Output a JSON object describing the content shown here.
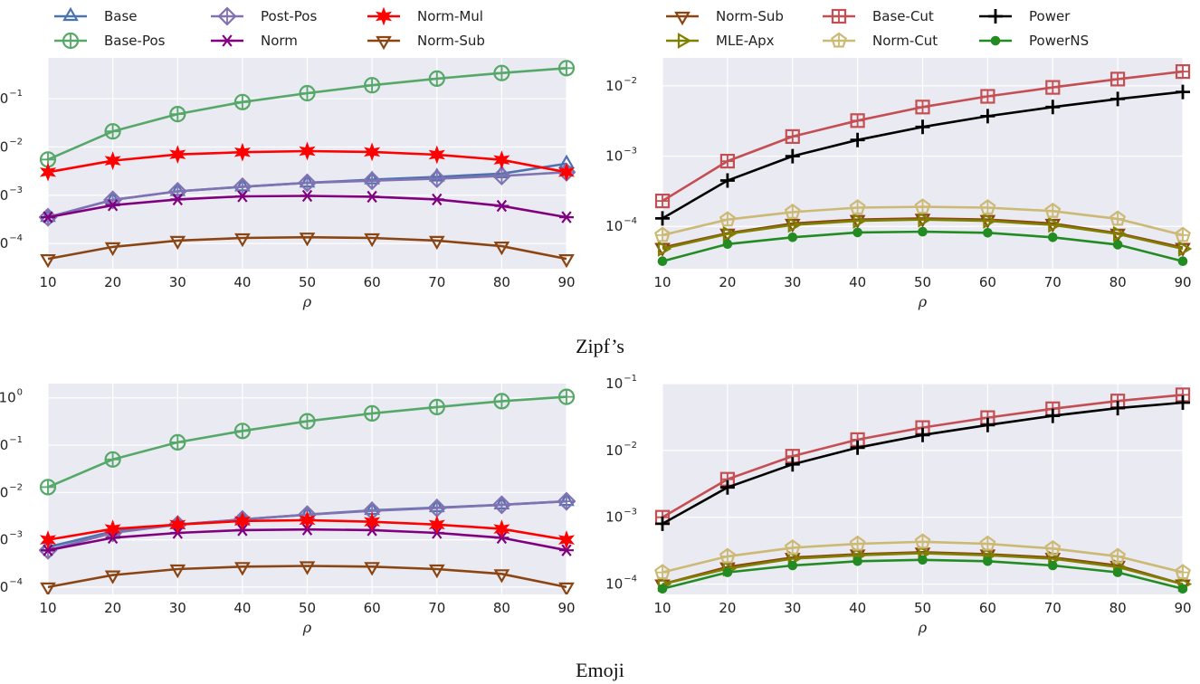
{
  "legends": {
    "left": [
      "Base",
      "Base-Pos",
      "Post-Pos",
      "Norm",
      "Norm-Mul",
      "Norm-Sub"
    ],
    "right": [
      "Norm-Sub",
      "MLE-Apx",
      "Base-Cut",
      "Norm-Cut",
      "Power",
      "PowerNS"
    ]
  },
  "captions": {
    "top": "Zipf’s",
    "bottom": "Emoji"
  },
  "styles": {
    "Base": {
      "color": "#4c72b0",
      "marker": "triangle-up"
    },
    "Base-Pos": {
      "color": "#55a868",
      "marker": "circle-plus"
    },
    "Post-Pos": {
      "color": "#8172b2",
      "marker": "diamond-plus"
    },
    "Norm": {
      "color": "#800080",
      "marker": "asterisk"
    },
    "Norm-Mul": {
      "color": "#ff0000",
      "marker": "star"
    },
    "Norm-Sub": {
      "color": "#8b4513",
      "marker": "triangle-down"
    },
    "MLE-Apx": {
      "color": "#808000",
      "marker": "triangle-right"
    },
    "Base-Cut": {
      "color": "#c44e52",
      "marker": "square-plus"
    },
    "Norm-Cut": {
      "color": "#ccb974",
      "marker": "pentagon-plus"
    },
    "Power": {
      "color": "#000000",
      "marker": "plus"
    },
    "PowerNS": {
      "color": "#228b22",
      "marker": "filled-circle"
    }
  },
  "chart_data": [
    {
      "type": "line",
      "yscale": "log",
      "grid": true,
      "xlabel": "ρ",
      "x": [
        10,
        20,
        30,
        40,
        50,
        60,
        70,
        80,
        90
      ],
      "xlim": [
        10,
        90
      ],
      "ylim": [
        3e-05,
        0.7
      ],
      "yticks": [
        -4,
        -3,
        -2,
        -1
      ],
      "series": [
        {
          "name": "Base",
          "values": [
            0.00035,
            0.0008,
            0.0012,
            0.0015,
            0.0018,
            0.0021,
            0.0024,
            0.0028,
            0.0045
          ]
        },
        {
          "name": "Base-Pos",
          "values": [
            0.0055,
            0.021,
            0.048,
            0.085,
            0.13,
            0.19,
            0.26,
            0.34,
            0.43
          ]
        },
        {
          "name": "Post-Pos",
          "values": [
            0.00035,
            0.0008,
            0.0012,
            0.0015,
            0.0018,
            0.002,
            0.0022,
            0.0025,
            0.003
          ]
        },
        {
          "name": "Norm",
          "values": [
            0.00035,
            0.00062,
            0.00082,
            0.00095,
            0.00097,
            0.00093,
            0.00082,
            0.0006,
            0.00035
          ]
        },
        {
          "name": "Norm-Mul",
          "values": [
            0.003,
            0.0052,
            0.007,
            0.0078,
            0.0082,
            0.0079,
            0.0069,
            0.0054,
            0.003
          ]
        },
        {
          "name": "Norm-Sub",
          "values": [
            4.8e-05,
            8.5e-05,
            0.000115,
            0.00013,
            0.000135,
            0.00013,
            0.000115,
            8.8e-05,
            4.8e-05
          ]
        }
      ]
    },
    {
      "type": "line",
      "yscale": "log",
      "grid": true,
      "xlabel": "ρ",
      "x": [
        10,
        20,
        30,
        40,
        50,
        60,
        70,
        80,
        90
      ],
      "xlim": [
        10,
        90
      ],
      "ylim": [
        2.5e-05,
        0.025
      ],
      "yticks": [
        -4,
        -3,
        -2
      ],
      "series": [
        {
          "name": "Norm-Sub",
          "values": [
            5e-05,
            8e-05,
            0.00011,
            0.000125,
            0.00013,
            0.000125,
            0.00011,
            8e-05,
            5e-05
          ]
        },
        {
          "name": "MLE-Apx",
          "values": [
            4.8e-05,
            7.8e-05,
            0.000105,
            0.00012,
            0.000125,
            0.00012,
            0.000105,
            7.8e-05,
            4.8e-05
          ]
        },
        {
          "name": "Base-Cut",
          "values": [
            0.00023,
            0.00085,
            0.0019,
            0.0032,
            0.005,
            0.0071,
            0.0095,
            0.0125,
            0.016
          ]
        },
        {
          "name": "Norm-Cut",
          "values": [
            7.5e-05,
            0.000125,
            0.00016,
            0.000185,
            0.00019,
            0.000185,
            0.000165,
            0.000128,
            7.5e-05
          ]
        },
        {
          "name": "Power",
          "values": [
            0.00013,
            0.00045,
            0.001,
            0.0017,
            0.0026,
            0.0037,
            0.005,
            0.0065,
            0.0082
          ]
        },
        {
          "name": "PowerNS",
          "values": [
            3.2e-05,
            5.6e-05,
            7e-05,
            8.2e-05,
            8.4e-05,
            8.1e-05,
            7e-05,
            5.5e-05,
            3.2e-05
          ]
        }
      ]
    },
    {
      "type": "line",
      "yscale": "log",
      "grid": true,
      "xlabel": "ρ",
      "x": [
        10,
        20,
        30,
        40,
        50,
        60,
        70,
        80,
        90
      ],
      "xlim": [
        10,
        90
      ],
      "ylim": [
        7e-05,
        2
      ],
      "yticks": [
        -4,
        -3,
        -2,
        -1,
        0
      ],
      "series": [
        {
          "name": "Base",
          "values": [
            0.0007,
            0.0015,
            0.0021,
            0.0027,
            0.0034,
            0.0042,
            0.0048,
            0.0055,
            0.0065
          ]
        },
        {
          "name": "Base-Pos",
          "values": [
            0.013,
            0.05,
            0.115,
            0.2,
            0.32,
            0.47,
            0.64,
            0.85,
            1.05
          ]
        },
        {
          "name": "Post-Pos",
          "values": [
            0.0006,
            0.0014,
            0.0021,
            0.0027,
            0.0034,
            0.0041,
            0.0047,
            0.0055,
            0.0065
          ]
        },
        {
          "name": "Norm",
          "values": [
            0.0006,
            0.0011,
            0.0014,
            0.0016,
            0.00165,
            0.0016,
            0.0014,
            0.0011,
            0.0006
          ]
        },
        {
          "name": "Norm-Mul",
          "values": [
            0.001,
            0.0017,
            0.0021,
            0.0025,
            0.0026,
            0.0024,
            0.0021,
            0.0017,
            0.001
          ]
        },
        {
          "name": "Norm-Sub",
          "values": [
            0.0001,
            0.00018,
            0.00024,
            0.00027,
            0.00028,
            0.00027,
            0.00024,
            0.00019,
            0.0001
          ]
        }
      ]
    },
    {
      "type": "line",
      "yscale": "log",
      "grid": true,
      "xlabel": "ρ",
      "x": [
        10,
        20,
        30,
        40,
        50,
        60,
        70,
        80,
        90
      ],
      "xlim": [
        10,
        90
      ],
      "ylim": [
        7e-05,
        0.1
      ],
      "yticks": [
        -4,
        -3,
        -2,
        -1
      ],
      "series": [
        {
          "name": "Norm-Sub",
          "values": [
            0.0001,
            0.00018,
            0.00025,
            0.00028,
            0.0003,
            0.00028,
            0.00025,
            0.00019,
            0.0001
          ]
        },
        {
          "name": "MLE-Apx",
          "values": [
            0.0001,
            0.00017,
            0.00024,
            0.00027,
            0.00029,
            0.00027,
            0.00024,
            0.00018,
            0.0001
          ]
        },
        {
          "name": "Base-Cut",
          "values": [
            0.001,
            0.0037,
            0.0082,
            0.0145,
            0.022,
            0.031,
            0.042,
            0.055,
            0.068
          ]
        },
        {
          "name": "Norm-Cut",
          "values": [
            0.00015,
            0.00026,
            0.00035,
            0.0004,
            0.00043,
            0.0004,
            0.00034,
            0.00026,
            0.00015
          ]
        },
        {
          "name": "Power",
          "values": [
            0.0008,
            0.0028,
            0.0062,
            0.011,
            0.017,
            0.024,
            0.033,
            0.043,
            0.052
          ]
        },
        {
          "name": "PowerNS",
          "values": [
            8.5e-05,
            0.00015,
            0.00019,
            0.00022,
            0.00023,
            0.00022,
            0.00019,
            0.00015,
            8.5e-05
          ]
        }
      ]
    }
  ]
}
